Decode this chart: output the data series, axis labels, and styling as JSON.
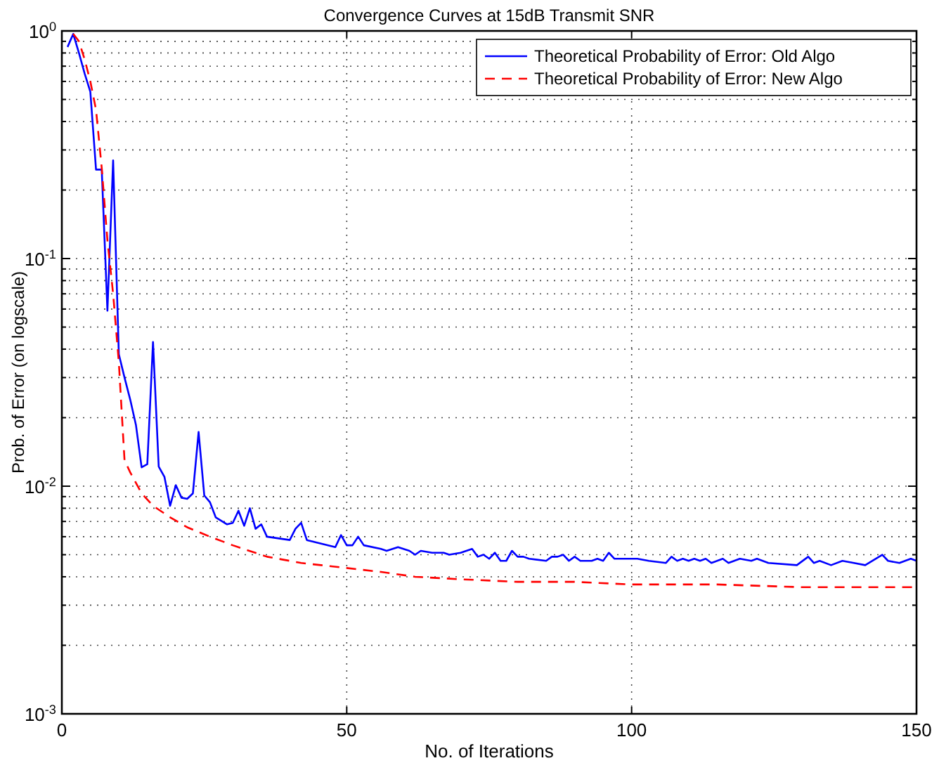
{
  "chart_data": {
    "type": "line",
    "title": "Convergence Curves at 15dB Transmit SNR",
    "xlabel": "No. of Iterations",
    "ylabel": "Prob. of Error (on logscale)",
    "log": "y",
    "grid": true,
    "legend": "top right",
    "marker": "none",
    "xlim": [
      0,
      150
    ],
    "xticks": [
      0,
      50,
      100,
      150
    ],
    "ylim": [
      0.001,
      1
    ],
    "yticks": [
      {
        "value": 0.001,
        "label": "10$^{-3}$"
      },
      {
        "value": 0.002,
        "label": null
      },
      {
        "value": 0.003,
        "label": null
      },
      {
        "value": 0.004,
        "label": null
      },
      {
        "value": 0.005,
        "label": null
      },
      {
        "value": 0.006,
        "label": null
      },
      {
        "value": 0.007,
        "label": null
      },
      {
        "value": 0.008,
        "label": null
      },
      {
        "value": 0.009,
        "label": null
      },
      {
        "value": 0.01,
        "label": "10$^{-2}$"
      },
      {
        "value": 0.02,
        "label": null
      },
      {
        "value": 0.03,
        "label": null
      },
      {
        "value": 0.04,
        "label": null
      },
      {
        "value": 0.05,
        "label": null
      },
      {
        "value": 0.06,
        "label": null
      },
      {
        "value": 0.07,
        "label": null
      },
      {
        "value": 0.08,
        "label": null
      },
      {
        "value": 0.09,
        "label": null
      },
      {
        "value": 0.1,
        "label": "10$^{-1}$"
      },
      {
        "value": 0.2,
        "label": null
      },
      {
        "value": 0.3,
        "label": null
      },
      {
        "value": 0.4,
        "label": null
      },
      {
        "value": 0.5,
        "label": null
      },
      {
        "value": 0.6,
        "label": null
      },
      {
        "value": 0.7,
        "label": null
      },
      {
        "value": 0.8,
        "label": null
      },
      {
        "value": 0.9,
        "label": null
      },
      {
        "value": 1,
        "label": "10$^{0}$"
      }
    ],
    "series": [
      {
        "name": "Theoretical Probability of Error: Old Algo",
        "color": "#0000ff",
        "line_style": "solid",
        "x": [
          1,
          2,
          3,
          4,
          5,
          6,
          7,
          8,
          9,
          10,
          11,
          12,
          13,
          14,
          15,
          16,
          17,
          18,
          19,
          20,
          21,
          22,
          23,
          24,
          25,
          26,
          27,
          29,
          30,
          31,
          32,
          33,
          34,
          35,
          36,
          40,
          41,
          42,
          43,
          48,
          49,
          50,
          51,
          52,
          53,
          56,
          57,
          59,
          61,
          62,
          63,
          65,
          67,
          68,
          70,
          72,
          73,
          74,
          75,
          76,
          77,
          78,
          79,
          80,
          81,
          82,
          85,
          86,
          87,
          88,
          89,
          90,
          91,
          93,
          94,
          95,
          96,
          97,
          99,
          100,
          101,
          103,
          106,
          107,
          108,
          109,
          110,
          111,
          112,
          113,
          114,
          116,
          117,
          119,
          121,
          122,
          124,
          129,
          131,
          132,
          133,
          135,
          137,
          139,
          141,
          144,
          145,
          147,
          149,
          150
        ],
        "values": [
          0.85,
          0.97,
          0.8,
          0.65,
          0.54,
          0.246,
          0.246,
          0.059,
          0.27,
          0.038,
          0.03,
          0.024,
          0.0186,
          0.0121,
          0.0125,
          0.043,
          0.0122,
          0.011,
          0.0082,
          0.0101,
          0.0089,
          0.0088,
          0.0093,
          0.0173,
          0.0091,
          0.0085,
          0.0073,
          0.0068,
          0.0069,
          0.0078,
          0.0067,
          0.008,
          0.0065,
          0.0068,
          0.006,
          0.0058,
          0.0065,
          0.0069,
          0.0058,
          0.0054,
          0.0061,
          0.0055,
          0.0055,
          0.006,
          0.0055,
          0.0053,
          0.0052,
          0.0054,
          0.0052,
          0.005,
          0.0052,
          0.0051,
          0.0051,
          0.005,
          0.0051,
          0.0053,
          0.0049,
          0.005,
          0.0048,
          0.0051,
          0.0047,
          0.0047,
          0.0052,
          0.0049,
          0.0049,
          0.0048,
          0.0047,
          0.0049,
          0.0049,
          0.005,
          0.0047,
          0.0049,
          0.0047,
          0.0047,
          0.0048,
          0.0047,
          0.0051,
          0.0048,
          0.0048,
          0.0048,
          0.0048,
          0.0047,
          0.0046,
          0.0049,
          0.0047,
          0.0048,
          0.0047,
          0.0048,
          0.0047,
          0.0048,
          0.0046,
          0.0048,
          0.0046,
          0.0048,
          0.0047,
          0.0048,
          0.0046,
          0.0045,
          0.0049,
          0.0046,
          0.0047,
          0.0045,
          0.0047,
          0.0046,
          0.0045,
          0.005,
          0.0047,
          0.0046,
          0.0048,
          0.0047
        ]
      },
      {
        "name": "Theoretical Probability of Error: New Algo",
        "color": "#ff0000",
        "line_style": "dashed",
        "x": [
          2,
          3,
          4,
          5,
          6,
          7,
          8,
          9,
          10,
          11,
          12,
          14,
          16,
          19,
          22,
          26,
          30,
          36,
          42,
          49,
          56,
          62,
          70,
          80,
          90,
          100,
          115,
          130,
          150
        ],
        "values": [
          0.97,
          0.9,
          0.75,
          0.6,
          0.45,
          0.25,
          0.12,
          0.07,
          0.035,
          0.013,
          0.0115,
          0.0093,
          0.0082,
          0.0073,
          0.0066,
          0.006,
          0.0055,
          0.0049,
          0.0046,
          0.0044,
          0.0042,
          0.004,
          0.0039,
          0.0038,
          0.0038,
          0.0037,
          0.0037,
          0.0036,
          0.0036
        ]
      }
    ]
  }
}
